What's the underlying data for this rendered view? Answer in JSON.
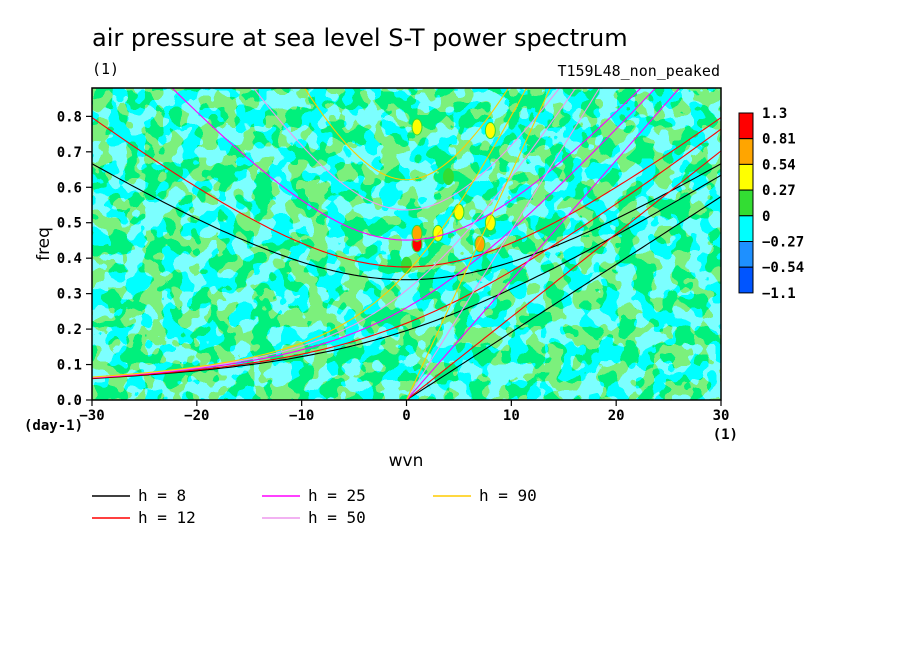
{
  "chart_data": {
    "type": "heatmap",
    "title": "air pressure at sea level S-T power spectrum",
    "subtitle": "(1)",
    "annotation": "T159L48_non_peaked",
    "xlabel": "wvn",
    "ylabel": "freq",
    "x_unit": "(1)",
    "y_unit": "(day-1)",
    "xlim": [
      -30,
      30
    ],
    "ylim": [
      0,
      0.88
    ],
    "x_ticks": [
      -30,
      -20,
      -10,
      0,
      10,
      20,
      30
    ],
    "x_tick_labels": [
      "−30",
      "−20",
      "−10",
      "0",
      "10",
      "20",
      "30"
    ],
    "y_ticks": [
      0,
      0.1,
      0.2,
      0.3,
      0.4,
      0.5,
      0.6,
      0.7,
      0.8
    ],
    "y_tick_labels": [
      "0.0",
      "0.1",
      "0.2",
      "0.3",
      "0.4",
      "0.5",
      "0.6",
      "0.7",
      "0.8"
    ],
    "colorbar": {
      "levels": [
        "1.3",
        "0.81",
        "0.54",
        "0.27",
        "0",
        "−0.27",
        "−0.54",
        "−1.1"
      ],
      "colors": [
        "#ff0000",
        "#ffa500",
        "#ffff00",
        "#33dd33",
        "#00ffff",
        "#1e90ff",
        "#0055ff"
      ]
    },
    "field_background_colors": [
      "#00ffff",
      "#33dd33"
    ],
    "hotspots": [
      {
        "x": 1,
        "y": 0.44,
        "level": "1.3"
      },
      {
        "x": 1,
        "y": 0.47,
        "level": "0.81"
      },
      {
        "x": 7,
        "y": 0.44,
        "level": "0.81"
      },
      {
        "x": 5,
        "y": 0.53,
        "level": "0.54"
      },
      {
        "x": 8,
        "y": 0.5,
        "level": "0.54"
      },
      {
        "x": 3,
        "y": 0.47,
        "level": "0.54"
      },
      {
        "x": 8,
        "y": 0.76,
        "level": "0.54"
      },
      {
        "x": 1,
        "y": 0.77,
        "level": "0.54"
      },
      {
        "x": 4,
        "y": 0.63,
        "level": "0.27"
      },
      {
        "x": 0,
        "y": 0.38,
        "level": "0.27"
      }
    ],
    "series": [
      {
        "name": "h =  8",
        "color": "#000000",
        "depth": 8
      },
      {
        "name": "h = 12",
        "color": "#ff0000",
        "depth": 12
      },
      {
        "name": "h = 25",
        "color": "#ff00ff",
        "depth": 25
      },
      {
        "name": "h = 50",
        "color": "#ee99ee",
        "depth": 50
      },
      {
        "name": "h = 90",
        "color": "#ffcc00",
        "depth": 90
      }
    ]
  }
}
